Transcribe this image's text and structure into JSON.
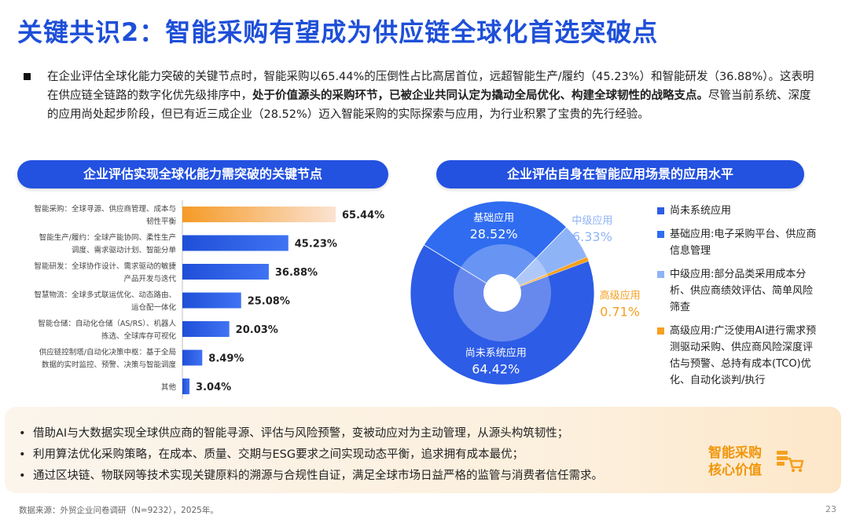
{
  "title": "关键共识2：智能采购有望成为供应链全球化首选突破点",
  "intro": {
    "part1": "在企业评估全球化能力突破的关键节点时，智能采购以65.44%的压倒性占比高居首位，远超智能生产/履约（45.23%）和智能研发（36.88%）。这表明在供应链全链路的数字化优先级排序中，",
    "bold": "处于价值源头的采购环节，已被企业共同认定为撬动全局优化、构建全球韧性的战略支点。",
    "part2": "尽管当前系统、深度的应用尚处起步阶段，但已有近三成企业（28.52%）迈入智能采购的实际探索与应用，为行业积累了宝贵的先行经验。"
  },
  "colors": {
    "accent": "#2351e0",
    "bar": "#2d5ce6",
    "bar_highlight": "#f5a338",
    "pie_dark": "#2d5ce6",
    "pie_mid": "#2f6cf0",
    "pie_light": "#8fb3f7",
    "pie_orange": "#f5a020"
  },
  "chart_data": [
    {
      "type": "bar",
      "title": "企业评估实现全球化能力需突破的关键节点",
      "orientation": "horizontal",
      "categories": [
        [
          "智能采购：全球寻源、供应商管理、成本与",
          "韧性平衡"
        ],
        [
          "智能生产/履约：全球产能协同、柔性生产",
          "调度、需求驱动计划、智能分单"
        ],
        [
          "智能研发：全球协作设计、需求驱动的敏捷",
          "产品开发与迭代"
        ],
        [
          "智慧物流：全球多式联运优化、动态路由、",
          "运仓配一体化"
        ],
        [
          "智能仓储：自动化仓储（AS/RS）、机器人",
          "拣选、全球库存可视化"
        ],
        [
          "供应链控制塔/自动化决策中枢：基于全局",
          "数据的实时监控、预警、决策与智能调度"
        ],
        [
          "其他"
        ]
      ],
      "values": [
        65.44,
        45.23,
        36.88,
        25.08,
        20.03,
        8.49,
        3.04
      ],
      "value_labels": [
        "65.44%",
        "45.23%",
        "36.88%",
        "25.08%",
        "20.03%",
        "8.49%",
        "3.04%"
      ],
      "xlim": [
        0,
        100
      ],
      "highlight_index": 0
    },
    {
      "type": "pie",
      "title": "企业评估自身在智能应用场景的应用水平",
      "slices": [
        {
          "label": "尚未系统应用",
          "value": 64.42,
          "value_label": "64.42%",
          "color": "#2d5ce6"
        },
        {
          "label": "基础应用",
          "value": 28.52,
          "value_label": "28.52%",
          "color": "#2f6cf0"
        },
        {
          "label": "中级应用",
          "value": 6.33,
          "value_label": "6.33%",
          "color": "#8fb3f7"
        },
        {
          "label": "高级应用",
          "value": 0.71,
          "value_label": "0.71%",
          "color": "#f5a020"
        }
      ],
      "legend": [
        "尚未系统应用",
        "基础应用:电子采购平台、供应商信息管理",
        "中级应用:部分品类采用成本分析、供应商绩效评估、简单风险筛查",
        "高级应用:广泛使用AI进行需求预测驱动采购、供应商风险深度评估与预警、总持有成本(TCO)优化、自动化谈判/执行"
      ],
      "legend_position": "right"
    }
  ],
  "bottom": {
    "items": [
      "借助AI与大数据实现全球供应商的智能寻源、评估与风险预警，变被动应对为主动管理，从源头构筑韧性；",
      "利用算法优化采购策略，在成本、质量、交期与ESG要求之间实现动态平衡，追求拥有成本最优；",
      "通过区块链、物联网等技术实现关键原料的溯源与合规性自证，满足全球市场日益严格的监管与消费者信任需求。"
    ],
    "core_line1": "智能采购",
    "core_line2": "核心价值",
    "core_icon": "shopping-cart-icon"
  },
  "source": "数据来源：外贸企业问卷调研（N=9232），2025年。",
  "page_number": "23"
}
